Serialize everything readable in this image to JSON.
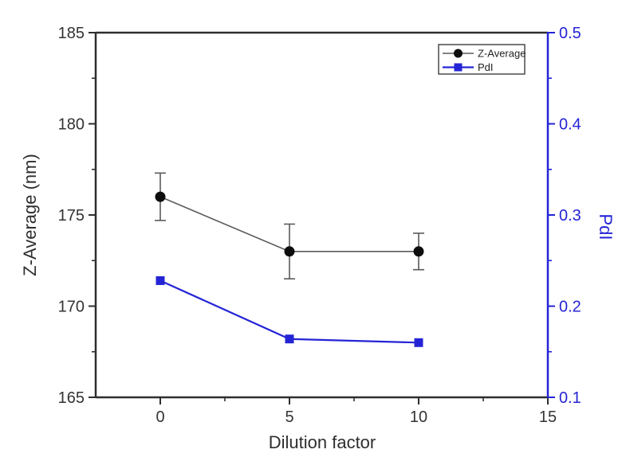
{
  "chart_data": {
    "type": "line",
    "title": "",
    "xlabel": "Dilution factor",
    "ylabel_left": "Z-Average (nm)",
    "ylabel_right": "PdI",
    "x": [
      0,
      5,
      10
    ],
    "series": [
      {
        "name": "Z-Average",
        "axis": "left",
        "marker": "circle",
        "marker_color": "#0d0d0d",
        "line_color": "#5a5a5a",
        "values": [
          176.0,
          173.0,
          173.0
        ],
        "errors": [
          1.3,
          1.5,
          1.0
        ]
      },
      {
        "name": "PdI",
        "axis": "right",
        "marker": "square",
        "marker_color": "#2424d6",
        "line_color": "#2424d6",
        "values": [
          0.228,
          0.164,
          0.16
        ],
        "errors": [
          0,
          0,
          0
        ]
      }
    ],
    "x_axis": {
      "range": [
        -2.5,
        15
      ],
      "major_ticks": [
        0,
        5,
        10,
        15
      ],
      "tick_labels": [
        "0",
        "5",
        "10",
        "15"
      ],
      "minor_ticks": [
        2.5,
        7.5,
        12.5
      ]
    },
    "left_axis": {
      "range": [
        165,
        185
      ],
      "major_ticks": [
        165,
        170,
        175,
        180,
        185
      ],
      "tick_labels": [
        "165",
        "170",
        "175",
        "180",
        "185"
      ],
      "minor_ticks": [
        167.5,
        172.5,
        177.5,
        182.5
      ]
    },
    "right_axis": {
      "range": [
        0.1,
        0.5
      ],
      "major_ticks": [
        0.1,
        0.2,
        0.3,
        0.4,
        0.5
      ],
      "tick_labels": [
        "0.1",
        "0.2",
        "0.3",
        "0.4",
        "0.5"
      ],
      "minor_ticks": [
        0.15,
        0.25,
        0.35,
        0.45
      ]
    },
    "legend": {
      "position": "top-right",
      "entries": [
        "Z-Average",
        "PdI"
      ]
    },
    "grid": false,
    "colors": {
      "axis": "#2e2e2e",
      "right_axis_color": "#2424d6",
      "error_bar": "#5a5a5a",
      "tick_label": "#333333",
      "background": "#ffffff"
    }
  }
}
